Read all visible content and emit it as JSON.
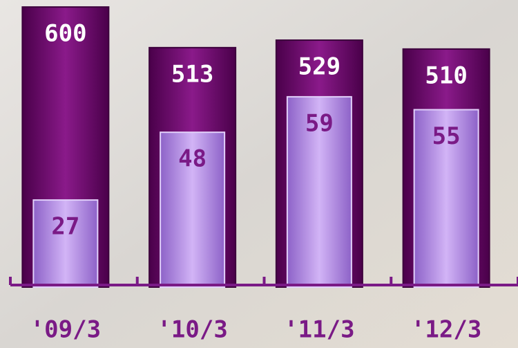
{
  "chart_data": {
    "type": "bar",
    "categories": [
      "'09/3",
      "'10/3",
      "'11/3",
      "'12/3"
    ],
    "series": [
      {
        "color": "#6e0a6e",
        "values": [
          600,
          513,
          529,
          510
        ]
      },
      {
        "color": "#b48ae6",
        "values": [
          27,
          48,
          59,
          55
        ],
        "axis": "y2"
      }
    ],
    "ylim": [
      0,
      615
    ],
    "y2lim": [
      0,
      89
    ]
  }
}
